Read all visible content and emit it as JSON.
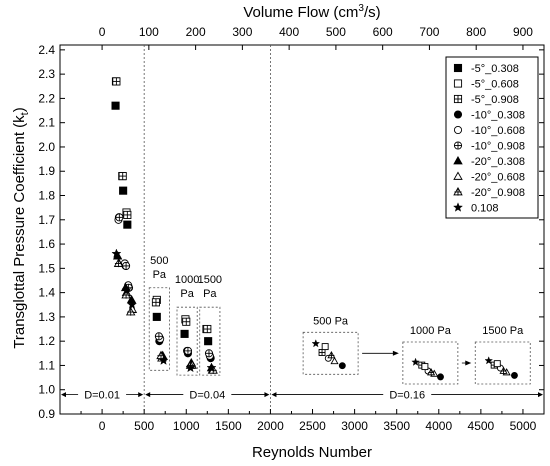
{
  "chart_data": {
    "type": "scatter",
    "xlabel": "Reynolds Number",
    "ylabel": "Transglottal Pressure Coefficient (k",
    "ylabel_sub": "t",
    "ylabel_close": ")",
    "x2label": "Volume Flow (cm",
    "x2label_sup": "3",
    "x2label_tail": "/s)",
    "xlim": [
      -500,
      5250
    ],
    "ylim": [
      0.9,
      2.42
    ],
    "x_ticks": [
      0,
      500,
      1000,
      1500,
      2000,
      2500,
      3000,
      3500,
      4000,
      4500,
      5000
    ],
    "x_tick_labels": [
      "0",
      "500",
      "1000",
      "1500",
      "2000",
      "2500",
      "3000",
      "3500",
      "4000",
      "4500",
      "5000"
    ],
    "y_ticks": [
      0.9,
      1.0,
      1.1,
      1.2,
      1.3,
      1.4,
      1.5,
      1.6,
      1.7,
      1.8,
      1.9,
      2.0,
      2.1,
      2.2,
      2.3,
      2.4
    ],
    "y_tick_labels": [
      "0.9",
      "1.0",
      "1.1",
      "1.2",
      "1.3",
      "1.4",
      "1.5",
      "1.6",
      "1.7",
      "1.8",
      "1.9",
      "2.0",
      "2.1",
      "2.2",
      "2.3",
      "2.4"
    ],
    "x2_ticks": [
      0,
      100,
      200,
      300,
      400,
      500,
      600,
      700,
      800,
      900
    ],
    "x2_tick_labels": [
      "0",
      "100",
      "200",
      "300",
      "400",
      "500",
      "600",
      "700",
      "800",
      "900"
    ],
    "x2_per_re": 0.18,
    "vlines": [
      500,
      2000
    ],
    "legend": {
      "position": "top-right"
    },
    "series": [
      {
        "name": "-5°_0.308",
        "marker": "square-filled",
        "points": [
          [
            160,
            2.17
          ],
          [
            250,
            1.82
          ],
          [
            300,
            1.68
          ],
          [
            650,
            1.3
          ],
          [
            980,
            1.23
          ],
          [
            1260,
            1.2
          ]
        ]
      },
      {
        "name": "-5°_0.608",
        "marker": "square-open",
        "points": [
          [
            165,
            2.27
          ],
          [
            240,
            1.88
          ],
          [
            290,
            1.73
          ],
          [
            650,
            1.37
          ],
          [
            990,
            1.29
          ],
          [
            1240,
            1.25
          ]
        ]
      },
      {
        "name": "-5°_0.908",
        "marker": "square-cross",
        "points": [
          [
            170,
            2.27
          ],
          [
            245,
            1.88
          ],
          [
            300,
            1.72
          ],
          [
            640,
            1.36
          ],
          [
            1000,
            1.28
          ],
          [
            1250,
            1.25
          ]
        ]
      },
      {
        "name": "-10°_0.308",
        "marker": "circle-filled",
        "points": [
          [
            200,
            1.71
          ],
          [
            280,
            1.51
          ],
          [
            320,
            1.42
          ],
          [
            680,
            1.2
          ],
          [
            1020,
            1.15
          ],
          [
            1290,
            1.13
          ]
        ]
      },
      {
        "name": "-10°_0.608",
        "marker": "circle-open",
        "points": [
          [
            195,
            1.7
          ],
          [
            270,
            1.52
          ],
          [
            310,
            1.43
          ],
          [
            690,
            1.21
          ],
          [
            1010,
            1.16
          ],
          [
            1280,
            1.14
          ]
        ]
      },
      {
        "name": "-10°_0.908",
        "marker": "circle-cross",
        "points": [
          [
            205,
            1.71
          ],
          [
            285,
            1.51
          ],
          [
            315,
            1.42
          ],
          [
            675,
            1.22
          ],
          [
            1020,
            1.16
          ],
          [
            1270,
            1.15
          ]
        ]
      },
      {
        "name": "-20°_0.308",
        "marker": "triangle-filled",
        "points": [
          [
            185,
            1.55
          ],
          [
            280,
            1.42
          ],
          [
            350,
            1.37
          ],
          [
            720,
            1.14
          ],
          [
            1060,
            1.11
          ],
          [
            1300,
            1.09
          ]
        ]
      },
      {
        "name": "-20°_0.608",
        "marker": "triangle-open",
        "points": [
          [
            200,
            1.52
          ],
          [
            290,
            1.4
          ],
          [
            360,
            1.33
          ],
          [
            710,
            1.13
          ],
          [
            1070,
            1.1
          ],
          [
            1310,
            1.08
          ]
        ]
      },
      {
        "name": "-20°_0.908",
        "marker": "triangle-cross",
        "points": [
          [
            195,
            1.52
          ],
          [
            285,
            1.39
          ],
          [
            340,
            1.32
          ],
          [
            700,
            1.14
          ],
          [
            1050,
            1.1
          ],
          [
            1320,
            1.08
          ]
        ]
      },
      {
        "name": "0.108",
        "marker": "star",
        "points": [
          [
            170,
            1.56
          ],
          [
            290,
            1.41
          ],
          [
            355,
            1.35
          ],
          [
            730,
            1.12
          ],
          [
            1050,
            1.09
          ],
          [
            1300,
            1.09
          ]
        ]
      }
    ],
    "inset_groups": [
      {
        "label": "500 Pa",
        "ax": 2690,
        "ay": 1.15,
        "re": 2715,
        "points": [
          [
            0.12,
            1.16
          ],
          [
            0.28,
            1.13
          ],
          [
            0.44,
            1.11
          ],
          [
            0.6,
            1.1
          ],
          [
            0.8,
            1.085
          ],
          [
            0.36,
            1.15
          ],
          [
            0.52,
            1.12
          ]
        ]
      },
      {
        "label": "1000 Pa",
        "ax": 3865,
        "ay": 1.11,
        "re": 3900,
        "points": [
          [
            0.12,
            1.13
          ],
          [
            0.28,
            1.12
          ],
          [
            0.44,
            1.1
          ],
          [
            0.6,
            1.09
          ],
          [
            0.76,
            1.08
          ],
          [
            0.36,
            1.115
          ],
          [
            0.52,
            1.095
          ]
        ]
      },
      {
        "label": "1500 Pa",
        "ax": 4720,
        "ay": 1.11,
        "re": 4760,
        "points": [
          [
            0.14,
            1.135
          ],
          [
            0.28,
            1.12
          ],
          [
            0.44,
            1.11
          ],
          [
            0.6,
            1.095
          ],
          [
            0.8,
            1.085
          ],
          [
            0.36,
            1.125
          ],
          [
            0.52,
            1.1
          ]
        ]
      }
    ],
    "bracket_labels": [
      {
        "label": "500\nPa"
      },
      {
        "label": "1000\nPa"
      },
      {
        "label": "1500\nPa"
      }
    ],
    "d_labels": [
      {
        "label": "D=0.01",
        "x1": -500,
        "x2": 500
      },
      {
        "label": "D=0.04",
        "x1": 500,
        "x2": 2000
      },
      {
        "label": "D=0.16",
        "x1": 2000,
        "x2": 5250
      }
    ],
    "d_y": 0.98,
    "colors": {
      "marker": "#000000",
      "axis": "#000000",
      "guide": "#555555"
    }
  }
}
